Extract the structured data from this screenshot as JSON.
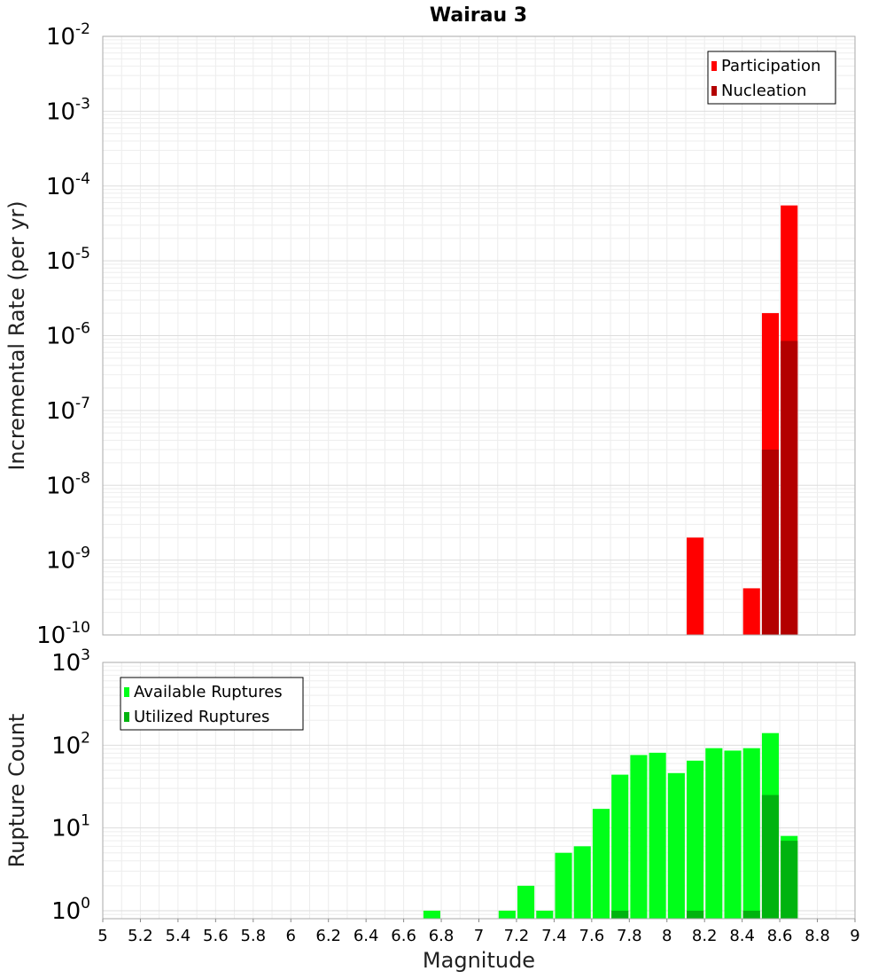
{
  "title": "Wairau 3",
  "chart_data": [
    {
      "type": "bar",
      "panel": "rates",
      "title": "Wairau 3",
      "ylabel": "Incremental Rate (per yr)",
      "xlabel": "",
      "yscale": "log",
      "xlim": [
        5,
        9
      ],
      "ylim": [
        1e-10,
        0.01
      ],
      "y_tick_exponents": [
        "-10",
        "-9",
        "-8",
        "-7",
        "-6",
        "-5",
        "-4",
        "-3",
        "-2"
      ],
      "y_tick_base": "10",
      "grid": true,
      "legend_position": "top-right",
      "bar_width": 0.09,
      "series": [
        {
          "name": "Participation",
          "color": "#ff0000",
          "x": [
            8.15,
            8.45,
            8.55,
            8.65
          ],
          "values": [
            2e-09,
            4.2e-10,
            2e-06,
            5.5e-05
          ]
        },
        {
          "name": "Nucleation",
          "color": "#b30000",
          "x": [
            8.55,
            8.65
          ],
          "values": [
            3e-08,
            8.5e-07
          ]
        }
      ]
    },
    {
      "type": "bar",
      "panel": "counts",
      "ylabel": "Rupture Count",
      "xlabel": "Magnitude",
      "yscale": "log",
      "xlim": [
        5,
        9
      ],
      "ylim": [
        0.8,
        1000
      ],
      "y_tick_exponents": [
        "0",
        "1",
        "2",
        "3"
      ],
      "y_tick_base": "10",
      "x_ticks": [
        "5",
        "5.2",
        "5.4",
        "5.6",
        "5.8",
        "6",
        "6.2",
        "6.4",
        "6.6",
        "6.8",
        "7",
        "7.2",
        "7.4",
        "7.6",
        "7.8",
        "8",
        "8.2",
        "8.4",
        "8.6",
        "8.8",
        "9"
      ],
      "grid": true,
      "legend_position": "top-left",
      "bar_width": 0.09,
      "series": [
        {
          "name": "Available Ruptures",
          "color": "#00ff19",
          "x": [
            6.75,
            7.15,
            7.25,
            7.35,
            7.45,
            7.55,
            7.65,
            7.75,
            7.85,
            7.95,
            8.05,
            8.15,
            8.25,
            8.35,
            8.45,
            8.55,
            8.65
          ],
          "values": [
            1,
            1,
            2,
            1,
            5,
            6,
            17,
            44,
            76,
            81,
            46,
            65,
            92,
            86,
            92,
            140,
            8
          ]
        },
        {
          "name": "Utilized Ruptures",
          "color": "#00b30f",
          "x": [
            7.75,
            8.15,
            8.45,
            8.55,
            8.65
          ],
          "values": [
            1,
            1,
            1,
            25,
            7
          ]
        }
      ]
    }
  ]
}
